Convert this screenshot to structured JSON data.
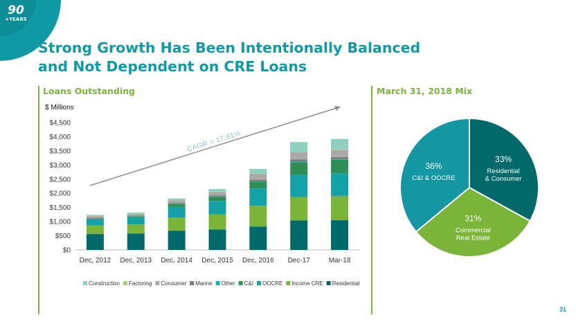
{
  "logo": {
    "number": "90",
    "text": "+YEARS"
  },
  "title_line1": "Strong Growth Has Been Intentionally Balanced",
  "title_line2": "and Not Dependent on CRE Loans",
  "loans_label": "Loans Outstanding",
  "mix_label": "March 31, 2018 Mix",
  "units_label": "$ Millions",
  "page_number": "31",
  "chart_data": [
    {
      "type": "bar",
      "stacked": true,
      "categories": [
        "Dec, 2012",
        "Dec, 2013",
        "Dec, 2014",
        "Dec, 2015",
        "Dec, 2016",
        "Dec-17",
        "Mar-18"
      ],
      "ylim": [
        0,
        4500
      ],
      "yticks": [
        0,
        500,
        1000,
        1500,
        2000,
        2500,
        3000,
        3500,
        4000,
        4500
      ],
      "ytick_labels": [
        "$0",
        "$500",
        "$1,000",
        "$1,500",
        "$2,000",
        "$2,500",
        "$3,000",
        "$3,500",
        "$4,000",
        "$4,500"
      ],
      "grid": false,
      "legend_position": "bottom",
      "annotation": "CAGR = 17.81%",
      "series": [
        {
          "name": "Residential",
          "color": "#006a6b",
          "values": [
            560,
            580,
            680,
            720,
            820,
            1040,
            1050
          ]
        },
        {
          "name": "Income CRE",
          "color": "#7ab539",
          "values": [
            300,
            320,
            460,
            540,
            740,
            830,
            860
          ]
        },
        {
          "name": "OOCRE",
          "color": "#12a2a8",
          "values": [
            220,
            240,
            380,
            470,
            610,
            780,
            800
          ]
        },
        {
          "name": "C&I",
          "color": "#2e8f55",
          "values": [
            30,
            40,
            100,
            150,
            240,
            450,
            470
          ]
        },
        {
          "name": "Other",
          "color": "#12b2a6",
          "values": [
            10,
            10,
            10,
            10,
            10,
            20,
            20
          ]
        },
        {
          "name": "Marine",
          "color": "#7d7d7d",
          "values": [
            20,
            20,
            40,
            40,
            60,
            80,
            80
          ]
        },
        {
          "name": "Consumer",
          "color": "#a9a9a9",
          "values": [
            50,
            50,
            80,
            120,
            200,
            250,
            250
          ]
        },
        {
          "name": "Factoring",
          "color": "#a7d070",
          "values": [
            10,
            10,
            10,
            10,
            10,
            10,
            10
          ]
        },
        {
          "name": "Construction",
          "color": "#8ed0c0",
          "values": [
            40,
            50,
            60,
            90,
            170,
            350,
            380
          ]
        }
      ]
    },
    {
      "type": "pie",
      "slices": [
        {
          "pct_label": "33%",
          "name_lines": [
            "Residential",
            "& Consumer"
          ],
          "value": 33,
          "color": "#006a6b"
        },
        {
          "pct_label": "31%",
          "name_lines": [
            "Commercial",
            "Real Estate"
          ],
          "value": 31,
          "color": "#7ab539"
        },
        {
          "pct_label": "36%",
          "name_lines": [
            "C&I & OOCRE"
          ],
          "value": 36,
          "color": "#1597a3"
        }
      ]
    }
  ]
}
